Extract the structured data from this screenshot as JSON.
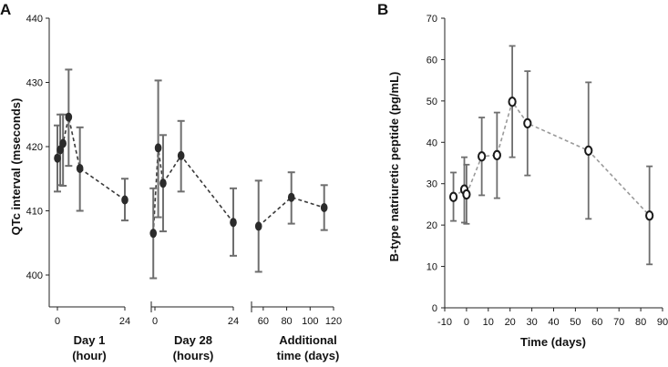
{
  "chart_data": [
    {
      "type": "line",
      "panel": "A",
      "ylabel": "QTc interval (mseconds)",
      "ylim": [
        400,
        440
      ],
      "yticks": [
        400,
        410,
        420,
        430,
        440
      ],
      "grid": false,
      "segments": [
        {
          "name": "day1",
          "label_lines": [
            "Day 1",
            "(hour)"
          ],
          "xlim": [
            -1,
            24
          ],
          "xticks": [
            0,
            24
          ],
          "x": [
            0,
            1,
            2,
            4,
            8,
            24
          ],
          "y": [
            418.2,
            419.5,
            420.5,
            424.6,
            416.6,
            411.7
          ],
          "ci_low": [
            413.0,
            414.0,
            413.9,
            417.0,
            410.0,
            408.5
          ],
          "ci_high": [
            423.3,
            425.0,
            425.0,
            432.0,
            423.0,
            415.0
          ]
        },
        {
          "name": "day28",
          "label_lines": [
            "Day 28",
            "(hours)"
          ],
          "xlim": [
            -2,
            24
          ],
          "xticks": [
            0,
            24
          ],
          "x": [
            -0.5,
            1,
            2.5,
            8,
            24
          ],
          "y": [
            406.5,
            419.8,
            414.3,
            418.6,
            408.2
          ],
          "ci_low": [
            399.5,
            409.0,
            406.8,
            413.0,
            403.0
          ],
          "ci_high": [
            413.5,
            430.3,
            421.8,
            424.0,
            413.5
          ]
        },
        {
          "name": "additional",
          "label_lines": [
            "Additional",
            "time (days)"
          ],
          "xlim": [
            50,
            120
          ],
          "xticks": [
            60,
            80,
            100,
            120
          ],
          "x": [
            56,
            84,
            112
          ],
          "y": [
            407.6,
            412.1,
            410.5
          ],
          "ci_low": [
            400.5,
            408.0,
            407.0
          ],
          "ci_high": [
            414.7,
            416.0,
            414.0
          ]
        }
      ]
    },
    {
      "type": "line",
      "panel": "B",
      "xlabel": "Time (days)",
      "ylabel": "B-type natriuretic peptide (pg/mL)",
      "xlim": [
        -10,
        90
      ],
      "ylim": [
        0,
        70
      ],
      "xticks": [
        -10,
        0,
        10,
        20,
        30,
        40,
        50,
        60,
        70,
        80,
        90
      ],
      "yticks": [
        0,
        10,
        20,
        30,
        40,
        50,
        60,
        70
      ],
      "grid": false,
      "x": [
        -6,
        -1,
        0,
        7,
        14,
        21,
        28,
        56,
        84
      ],
      "y": [
        26.8,
        28.6,
        27.4,
        36.6,
        36.9,
        49.8,
        44.6,
        38.0,
        22.3
      ],
      "ci_low": [
        21.0,
        20.6,
        20.3,
        27.2,
        26.5,
        36.4,
        32.0,
        21.5,
        10.5
      ],
      "ci_high": [
        32.7,
        36.4,
        34.6,
        46.0,
        47.2,
        63.3,
        57.2,
        54.5,
        34.2
      ]
    }
  ]
}
